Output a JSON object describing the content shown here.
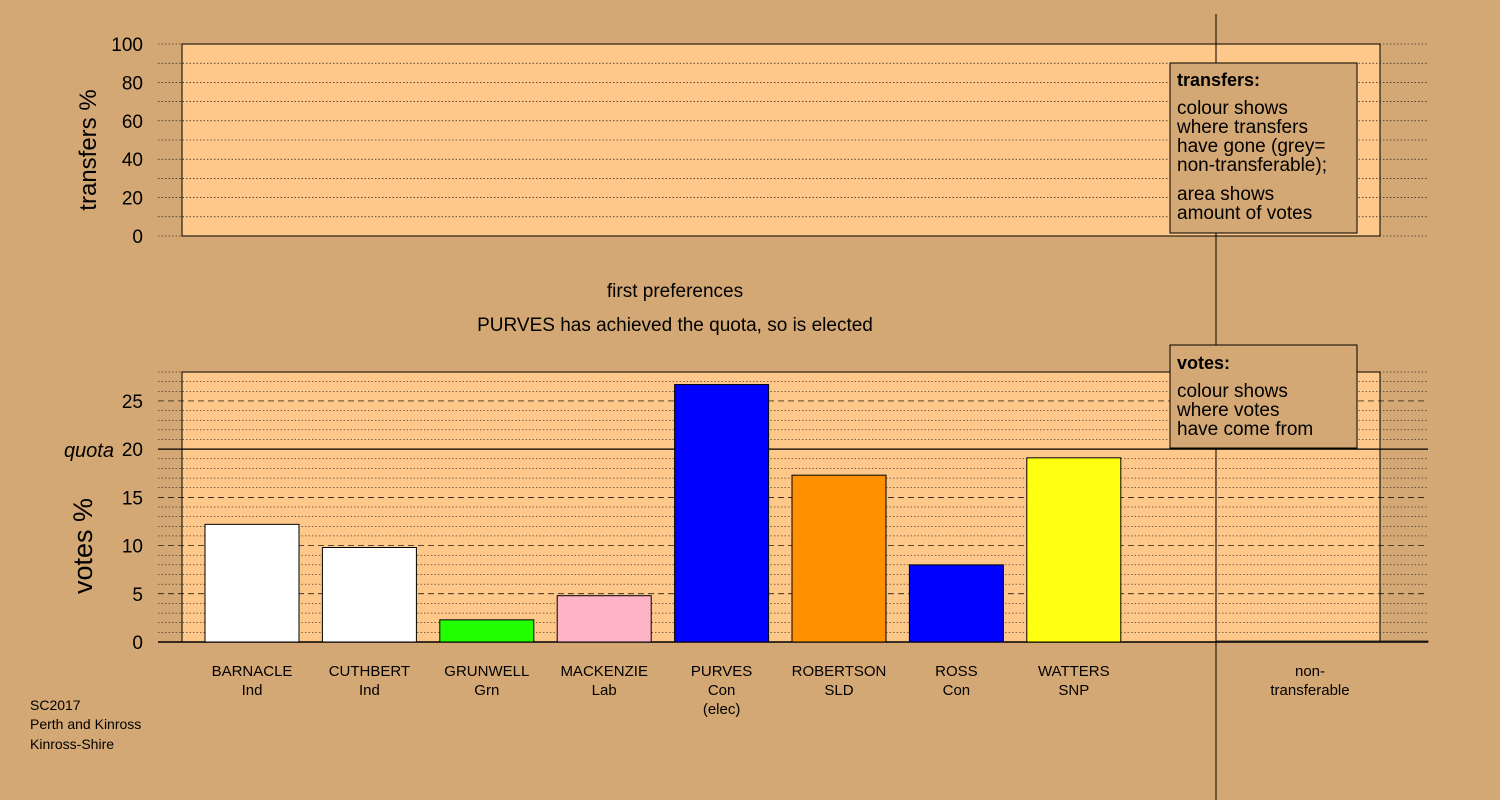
{
  "colors": {
    "background": "#d4a874",
    "panel": "#fdc889",
    "legend_box": "#d4a874"
  },
  "captions": {
    "stage_title": "first preferences",
    "stage_subtitle": "PURVES has achieved the quota, so is elected",
    "source_lines": [
      "SC2017",
      "Perth and Kinross",
      "Kinross-Shire"
    ]
  },
  "legends": {
    "transfers": {
      "title": "transfers:",
      "lines": [
        "colour shows",
        "where transfers",
        "have gone (grey=",
        "non-transferable);"
      ],
      "lines2": [
        "area shows",
        "amount of votes"
      ]
    },
    "votes": {
      "title": "votes:",
      "lines": [
        "colour shows",
        "where votes",
        "have come from"
      ]
    }
  },
  "chart_data": [
    {
      "type": "bar",
      "ylabel": "transfers %",
      "ylim": [
        0,
        100
      ],
      "yticks": [
        "0",
        "20",
        "40",
        "60",
        "80",
        "100"
      ],
      "series": []
    },
    {
      "type": "bar",
      "ylabel": "votes %",
      "ylim": [
        0,
        28
      ],
      "yticks": [
        "0",
        "5",
        "10",
        "15",
        "20",
        "25"
      ],
      "quota": {
        "label": "quota",
        "value": 20
      },
      "categories": [
        {
          "name": "BARNACLE",
          "party": "Ind",
          "value": 12.2,
          "color": "#ffffff"
        },
        {
          "name": "CUTHBERT",
          "party": "Ind",
          "value": 9.8,
          "color": "#ffffff"
        },
        {
          "name": "GRUNWELL",
          "party": "Grn",
          "value": 2.3,
          "color": "#22ff00"
        },
        {
          "name": "MACKENZIE",
          "party": "Lab",
          "value": 4.8,
          "color": "#ffb3c7"
        },
        {
          "name": "PURVES",
          "party": "Con",
          "note": "(elec)",
          "value": 26.7,
          "color": "#0000ff"
        },
        {
          "name": "ROBERTSON",
          "party": "SLD",
          "value": 17.3,
          "color": "#ff9100"
        },
        {
          "name": "ROSS",
          "party": "Con",
          "value": 8.0,
          "color": "#0000ff"
        },
        {
          "name": "WATTERS",
          "party": "SNP",
          "value": 19.1,
          "color": "#ffff11"
        }
      ],
      "nontransferable": {
        "label_line1": "non-",
        "label_line2": "transferable",
        "value": 0.1,
        "color": "#888888"
      }
    }
  ]
}
